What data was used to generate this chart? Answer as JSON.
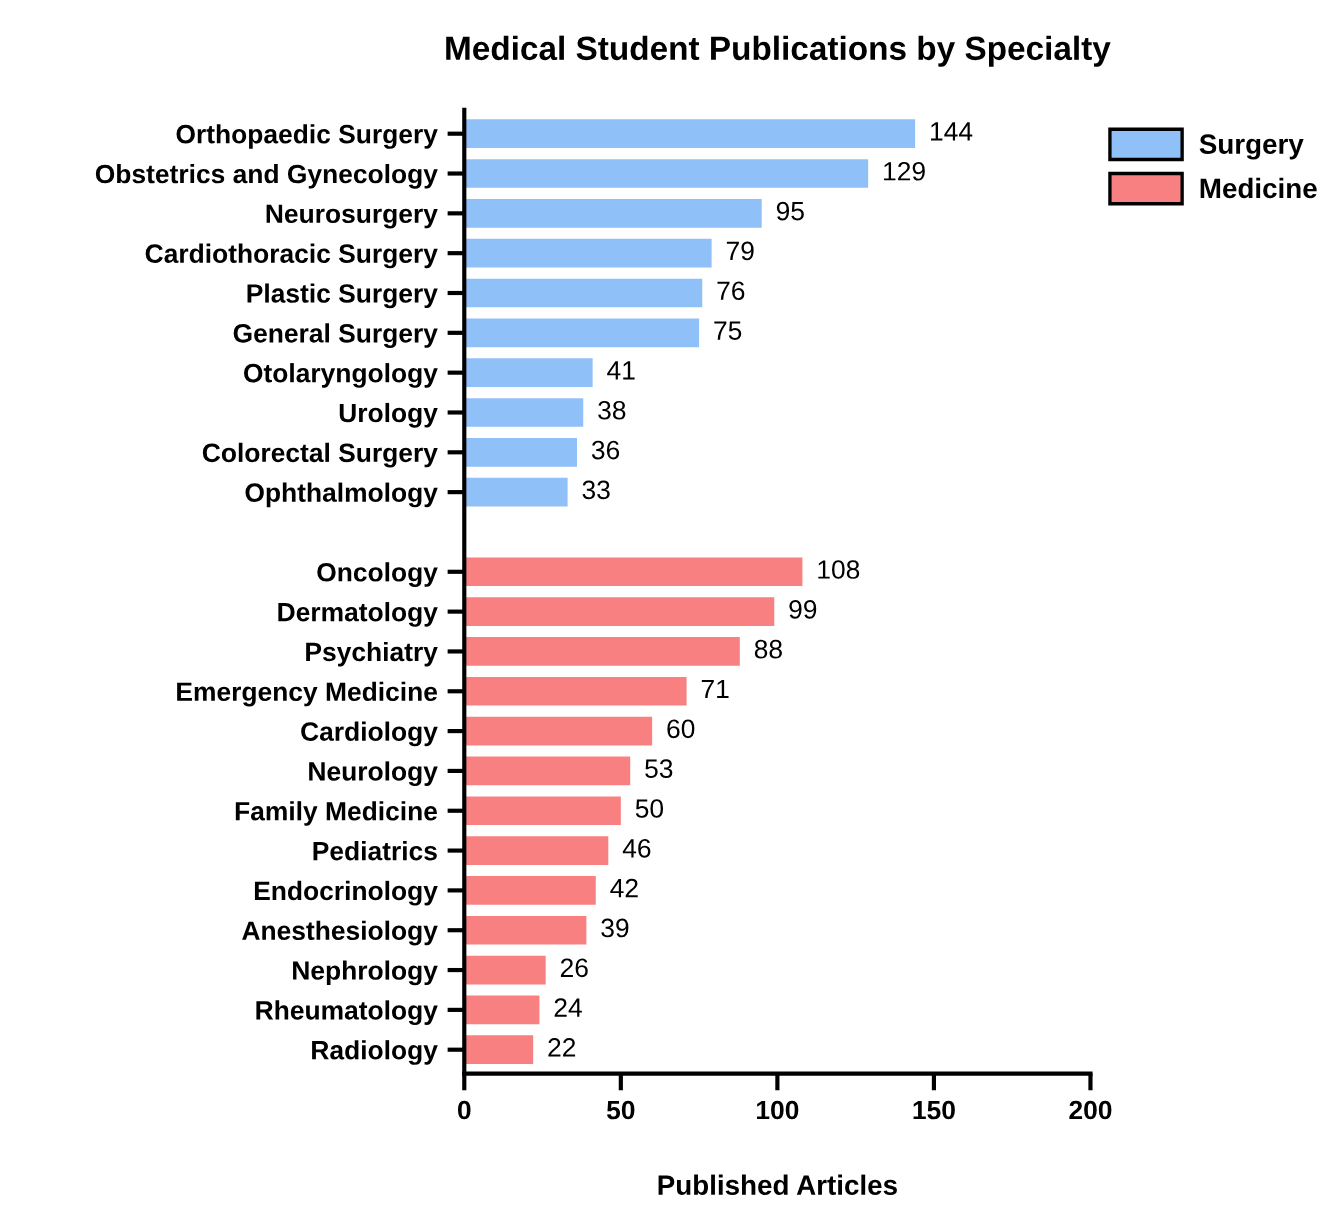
{
  "chart_data": {
    "type": "bar",
    "orientation": "horizontal",
    "title": "Medical Student Publications by Specialty",
    "xlabel": "Published Articles",
    "categories": [
      "Orthopaedic Surgery",
      "Obstetrics and Gynecology",
      "Neurosurgery",
      "Cardiothoracic Surgery",
      "Plastic Surgery",
      "General Surgery",
      "Otolaryngology",
      "Urology",
      "Colorectal Surgery",
      "Ophthalmology",
      null,
      "Oncology",
      "Dermatology",
      "Psychiatry",
      "Emergency Medicine",
      "Cardiology",
      "Neurology",
      "Family Medicine",
      "Pediatrics",
      "Endocrinology",
      "Anesthesiology",
      "Nephrology",
      "Rheumatology",
      "Radiology"
    ],
    "series": [
      {
        "name": "Surgery",
        "color": "#90c0f8",
        "values": [
          144,
          129,
          95,
          79,
          76,
          75,
          41,
          38,
          36,
          33,
          null,
          null,
          null,
          null,
          null,
          null,
          null,
          null,
          null,
          null,
          null,
          null,
          null,
          null
        ]
      },
      {
        "name": "Medicine",
        "color": "#f98080",
        "values": [
          null,
          null,
          null,
          null,
          null,
          null,
          null,
          null,
          null,
          null,
          null,
          108,
          99,
          88,
          71,
          60,
          53,
          50,
          46,
          42,
          39,
          26,
          24,
          22
        ]
      }
    ],
    "xlim": [
      0,
      200
    ],
    "xticks": [
      0,
      50,
      100,
      150,
      200
    ],
    "data_labels": true,
    "legend": "right",
    "grid": false
  }
}
